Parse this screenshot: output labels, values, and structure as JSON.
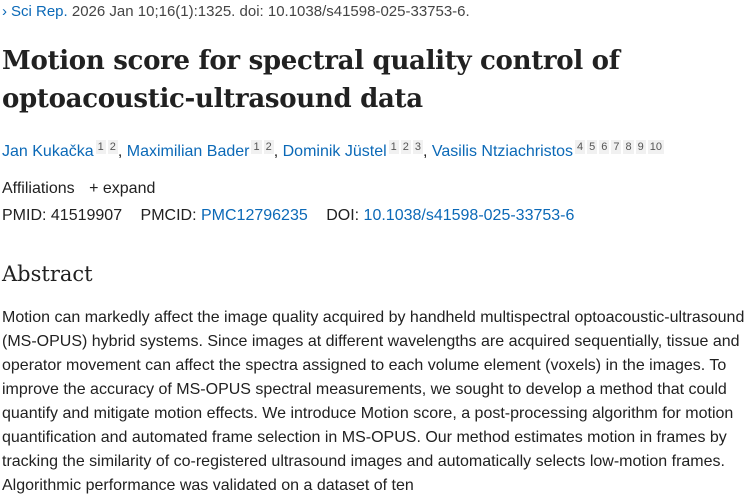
{
  "citation": {
    "journal": "Sci Rep.",
    "details": "2026 Jan 10;16(1):1325. doi: 10.1038/s41598-025-33753-6."
  },
  "title": "Motion score for spectral quality control of optoacoustic-ultrasound data",
  "authors": [
    {
      "name": "Jan Kukačka",
      "affs": [
        "1",
        "2"
      ]
    },
    {
      "name": "Maximilian Bader",
      "affs": [
        "1",
        "2"
      ]
    },
    {
      "name": "Dominik Jüstel",
      "affs": [
        "1",
        "2",
        "3"
      ]
    },
    {
      "name": "Vasilis Ntziachristos",
      "affs": [
        "4",
        "5",
        "6",
        "7",
        "8",
        "9",
        "10"
      ]
    }
  ],
  "affiliations": {
    "label": "Affiliations",
    "expand": "+ expand"
  },
  "ids": {
    "pmid_label": "PMID:",
    "pmid": "41519907",
    "pmcid_label": "PMCID:",
    "pmcid": "PMC12796235",
    "doi_label": "DOI:",
    "doi": "10.1038/s41598-025-33753-6"
  },
  "abstract": {
    "heading": "Abstract",
    "text": "Motion can markedly affect the image quality acquired by handheld multispectral optoacoustic-ultrasound (MS-OPUS) hybrid systems. Since images at different wavelengths are acquired sequentially, tissue and operator movement can affect the spectra assigned to each volume element (voxels) in the images. To improve the accuracy of MS-OPUS spectral measurements, we sought to develop a method that could quantify and mitigate motion effects. We introduce Motion score, a post-processing algorithm for motion quantification and automated frame selection in MS-OPUS. Our method estimates motion in frames by tracking the similarity of co-registered ultrasound images and automatically selects low-motion frames. Algorithmic performance was validated on a dataset of ten"
  }
}
